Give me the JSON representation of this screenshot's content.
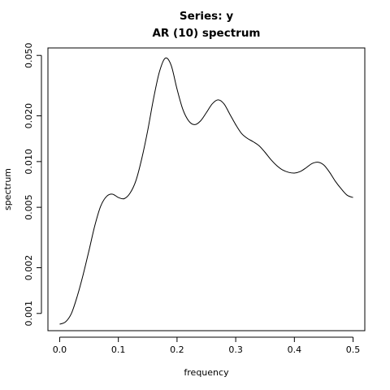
{
  "chart_data": {
    "type": "line",
    "title": "Series: y",
    "subtitle": "AR (10) spectrum",
    "xlabel": "frequency",
    "ylabel": "spectrum",
    "x_scale": "linear",
    "y_scale": "log",
    "xlim": [
      -0.02,
      0.52
    ],
    "ylim": [
      0.00077,
      0.056
    ],
    "x_ticks": [
      {
        "value": 0.0,
        "label": "0.0"
      },
      {
        "value": 0.1,
        "label": "0.1"
      },
      {
        "value": 0.2,
        "label": "0.2"
      },
      {
        "value": 0.3,
        "label": "0.3"
      },
      {
        "value": 0.4,
        "label": "0.4"
      },
      {
        "value": 0.5,
        "label": "0.5"
      }
    ],
    "y_ticks": [
      {
        "value": 0.001,
        "label": "0.001"
      },
      {
        "value": 0.002,
        "label": "0.002"
      },
      {
        "value": 0.005,
        "label": "0.005"
      },
      {
        "value": 0.01,
        "label": "0.010"
      },
      {
        "value": 0.02,
        "label": "0.020"
      },
      {
        "value": 0.05,
        "label": "0.050"
      }
    ],
    "grid": false,
    "series": [
      {
        "color": "#000000",
        "x": [
          0.0,
          0.01,
          0.02,
          0.03,
          0.04,
          0.05,
          0.06,
          0.07,
          0.08,
          0.09,
          0.1,
          0.11,
          0.12,
          0.13,
          0.14,
          0.15,
          0.16,
          0.17,
          0.18,
          0.19,
          0.2,
          0.21,
          0.22,
          0.23,
          0.24,
          0.25,
          0.26,
          0.27,
          0.28,
          0.29,
          0.3,
          0.31,
          0.32,
          0.33,
          0.34,
          0.35,
          0.36,
          0.37,
          0.38,
          0.39,
          0.4,
          0.41,
          0.42,
          0.43,
          0.44,
          0.45,
          0.46,
          0.47,
          0.48,
          0.49,
          0.5
        ],
        "values": [
          0.00085,
          0.00088,
          0.001,
          0.0013,
          0.0018,
          0.0026,
          0.0038,
          0.0051,
          0.0059,
          0.0061,
          0.0058,
          0.0057,
          0.0062,
          0.0075,
          0.0105,
          0.016,
          0.026,
          0.039,
          0.048,
          0.043,
          0.03,
          0.022,
          0.0185,
          0.0175,
          0.0185,
          0.021,
          0.024,
          0.0255,
          0.024,
          0.0205,
          0.0175,
          0.0153,
          0.0142,
          0.0135,
          0.0127,
          0.0115,
          0.0103,
          0.0094,
          0.0088,
          0.0085,
          0.0084,
          0.0086,
          0.0091,
          0.0097,
          0.0099,
          0.0095,
          0.0085,
          0.0074,
          0.0066,
          0.006,
          0.0058
        ]
      }
    ]
  }
}
